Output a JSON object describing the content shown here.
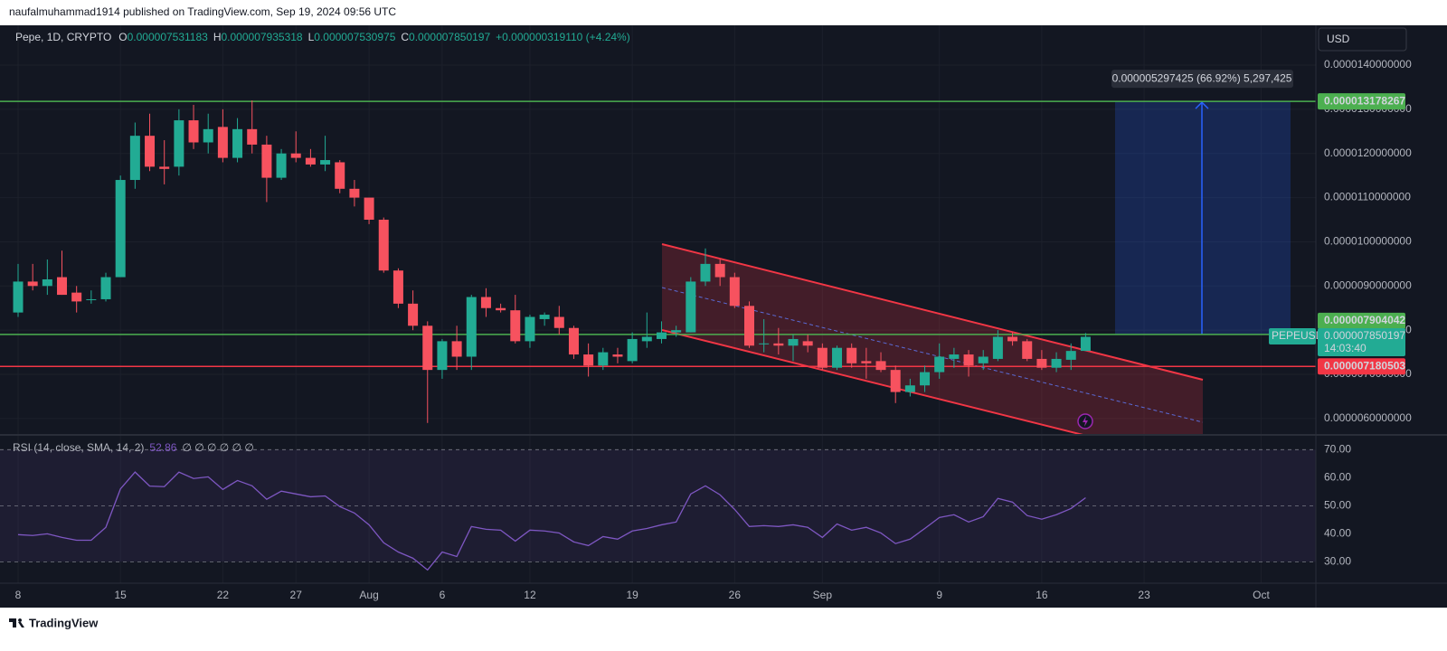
{
  "header": {
    "text": "naufalmuhammad1914 published on TradingView.com, Sep 19, 2024 09:56 UTC"
  },
  "footer": {
    "logo": "TradingView"
  },
  "chart_data": [
    {
      "type": "candlestick",
      "title": "Pepe, 1D, CRYPTO",
      "currency": "USD",
      "ohlc_labels": [
        "O",
        "H",
        "L",
        "C"
      ],
      "change": "+0.000000319110 (+4.24%)",
      "symbol_label": "PEPEUSD",
      "countdown": "14:03:40",
      "measure_label": "0.000005297425 (66.92%) 5,297,425",
      "up_color": "#22ab94",
      "down_color": "#f7525f",
      "grid": true,
      "categories": [
        "8",
        null,
        null,
        null,
        null,
        null,
        null,
        "15",
        null,
        null,
        null,
        null,
        null,
        null,
        "22",
        null,
        null,
        null,
        null,
        "27",
        null,
        null,
        null,
        null,
        "Aug",
        null,
        null,
        null,
        null,
        "6",
        null,
        null,
        null,
        null,
        null,
        "12",
        null,
        null,
        null,
        null,
        null,
        null,
        "19",
        null,
        null,
        null,
        null,
        null,
        null,
        "26",
        null,
        null,
        null,
        null,
        null,
        "Sep",
        null,
        null,
        null,
        null,
        null,
        null,
        null,
        "9",
        null,
        null,
        null,
        null,
        null,
        null,
        "16",
        null,
        null,
        null,
        null,
        null,
        null,
        "23",
        null,
        null,
        null,
        null,
        null,
        null,
        null,
        "Oct",
        null,
        null,
        null
      ],
      "open": [
        8.4e-06,
        9.1e-06,
        9e-06,
        9.2e-06,
        8.85e-06,
        8.7e-06,
        8.7e-06,
        9.2e-06,
        1.14e-05,
        1.24e-05,
        1.17e-05,
        1.17e-05,
        1.275e-05,
        1.225e-05,
        1.26e-05,
        1.19e-05,
        1.255e-05,
        1.22e-05,
        1.145e-05,
        1.2e-05,
        1.19e-05,
        1.175e-05,
        1.18e-05,
        1.12e-05,
        1.1e-05,
        1.05e-05,
        9.35e-06,
        8.6e-06,
        8.1e-06,
        7.1e-06,
        7.75e-06,
        7.4e-06,
        8.75e-06,
        8.5e-06,
        8.45e-06,
        7.75e-06,
        8.25e-06,
        8.3e-06,
        8.05e-06,
        7.45e-06,
        7.2e-06,
        7.45e-06,
        7.3e-06,
        7.75e-06,
        7.8e-06,
        7.95e-06,
        7.95e-06,
        9.1e-06,
        9.5e-06,
        9.2e-06,
        8.55e-06,
        7.7e-06,
        7.7e-06,
        7.65e-06,
        7.75e-06,
        7.6e-06,
        7.15e-06,
        7.6e-06,
        7.3e-06,
        7.3e-06,
        7.1e-06,
        6.6e-06,
        6.75e-06,
        7.05e-06,
        7.35e-06,
        7.45e-06,
        7.25e-06,
        7.35e-06,
        7.85e-06,
        7.75e-06,
        7.35e-06,
        7.15e-06,
        7.33e-06,
        7.531183e-06,
        null,
        null,
        null,
        null,
        null,
        null,
        null,
        null,
        null,
        null,
        null,
        null,
        null,
        null,
        null
      ],
      "high": [
        9.5e-06,
        9.5e-06,
        9.6e-06,
        9.8e-06,
        9e-06,
        8.9e-06,
        9.3e-06,
        1.15e-05,
        1.27e-05,
        1.29e-05,
        1.23e-05,
        1.3e-05,
        1.31e-05,
        1.29e-05,
        1.3e-05,
        1.28e-05,
        1.32e-05,
        1.24e-05,
        1.21e-05,
        1.25e-05,
        1.21e-05,
        1.24e-05,
        1.185e-05,
        1.14e-05,
        1.1e-05,
        1.055e-05,
        9.4e-06,
        8.9e-06,
        8.2e-06,
        7.8e-06,
        8.1e-06,
        8.8e-06,
        8.95e-06,
        8.6e-06,
        8.8e-06,
        8.35e-06,
        8.4e-06,
        8.55e-06,
        8.1e-06,
        7.7e-06,
        7.6e-06,
        7.6e-06,
        7.95e-06,
        8.4e-06,
        8.2e-06,
        8.1e-06,
        9.2e-06,
        9.85e-06,
        9.6e-06,
        9.3e-06,
        8.65e-06,
        8.25e-06,
        8.05e-06,
        7.9e-06,
        7.9e-06,
        7.7e-06,
        7.65e-06,
        7.7e-06,
        7.6e-06,
        7.5e-06,
        7.2e-06,
        6.9e-06,
        7.2e-06,
        7.7e-06,
        7.6e-06,
        7.55e-06,
        7.55e-06,
        8e-06,
        7.95e-06,
        7.8e-06,
        7.55e-06,
        7.5e-06,
        7.7e-06,
        7.935318e-06,
        null,
        null,
        null,
        null,
        null,
        null,
        null,
        null,
        null,
        null,
        null,
        null,
        null,
        null,
        null
      ],
      "low": [
        8.3e-06,
        8.9e-06,
        8.8e-06,
        8.8e-06,
        8.4e-06,
        8.6e-06,
        8.65e-06,
        9.2e-06,
        1.12e-05,
        1.16e-05,
        1.13e-05,
        1.15e-05,
        1.21e-05,
        1.2e-05,
        1.18e-05,
        1.18e-05,
        1.2e-05,
        1.09e-05,
        1.14e-05,
        1.18e-05,
        1.17e-05,
        1.16e-05,
        1.11e-05,
        1.08e-05,
        1.04e-05,
        9.3e-06,
        8.5e-06,
        8e-06,
        5.9e-06,
        6.9e-06,
        7.1e-06,
        7.1e-06,
        8.3e-06,
        8.4e-06,
        7.7e-06,
        7.6e-06,
        8.1e-06,
        7.9e-06,
        7.35e-06,
        6.95e-06,
        7.1e-06,
        7.25e-06,
        7.25e-06,
        7.6e-06,
        7.7e-06,
        7.85e-06,
        7.95e-06,
        9e-06,
        9e-06,
        8.5e-06,
        7.6e-06,
        7.5e-06,
        7.45e-06,
        7.3e-06,
        7.5e-06,
        7.1e-06,
        7.1e-06,
        7.15e-06,
        6.9e-06,
        7.05e-06,
        6.35e-06,
        6.5e-06,
        6.6e-06,
        6.9e-06,
        7.15e-06,
        6.95e-06,
        7.1e-06,
        7.3e-06,
        7.65e-06,
        7.3e-06,
        7.1e-06,
        7.05e-06,
        7.1e-06,
        7.530975e-06,
        null,
        null,
        null,
        null,
        null,
        null,
        null,
        null,
        null,
        null,
        null,
        null,
        null,
        null,
        null
      ],
      "close": [
        9.1e-06,
        9e-06,
        9.15e-06,
        8.8e-06,
        8.65e-06,
        8.7e-06,
        9.2e-06,
        1.14e-05,
        1.24e-05,
        1.17e-05,
        1.165e-05,
        1.275e-05,
        1.225e-05,
        1.255e-05,
        1.19e-05,
        1.255e-05,
        1.22e-05,
        1.145e-05,
        1.2e-05,
        1.19e-05,
        1.175e-05,
        1.185e-05,
        1.12e-05,
        1.1e-05,
        1.05e-05,
        9.35e-06,
        8.6e-06,
        8.1e-06,
        7.1e-06,
        7.75e-06,
        7.4e-06,
        8.75e-06,
        8.5e-06,
        8.45e-06,
        7.75e-06,
        8.3e-06,
        8.35e-06,
        8.05e-06,
        7.45e-06,
        7.2e-06,
        7.5e-06,
        7.4e-06,
        7.8e-06,
        7.85e-06,
        7.95e-06,
        8e-06,
        9.1e-06,
        9.5e-06,
        9.2e-06,
        8.55e-06,
        7.65e-06,
        7.7e-06,
        7.65e-06,
        7.8e-06,
        7.65e-06,
        7.15e-06,
        7.6e-06,
        7.25e-06,
        7.25e-06,
        7.1e-06,
        6.6e-06,
        6.75e-06,
        7.05e-06,
        7.4e-06,
        7.45e-06,
        7.2e-06,
        7.4e-06,
        7.85e-06,
        7.75e-06,
        7.35e-06,
        7.15e-06,
        7.35e-06,
        7.53e-06,
        7.850197e-06,
        null,
        null,
        null,
        null,
        null,
        null,
        null,
        null,
        null,
        null,
        null,
        null,
        null,
        null,
        null
      ],
      "ylim": [
        5.65e-06,
        1.49e-05
      ],
      "yticks": [
        {
          "value": 1.4e-05,
          "label": "0.0000140000000"
        },
        {
          "value": 1.3e-05,
          "label": "0.0000130000000"
        },
        {
          "value": 1.2e-05,
          "label": "0.0000120000000"
        },
        {
          "value": 1.1e-05,
          "label": "0.0000110000000"
        },
        {
          "value": 1e-05,
          "label": "0.0000100000000"
        },
        {
          "value": 9e-06,
          "label": "0.0000090000000"
        },
        {
          "value": 8e-06,
          "label": "0.0000080000000"
        },
        {
          "value": 7e-06,
          "label": "0.0000070000000"
        },
        {
          "value": 6e-06,
          "label": "0.0000060000000"
        }
      ],
      "hlines": [
        {
          "value": 1.3178267e-05,
          "color": "#4caf50"
        },
        {
          "value": 7.904042e-06,
          "color": "#4caf50"
        },
        {
          "value": 7.180503e-06,
          "color": "#f23645"
        }
      ]
    },
    {
      "type": "line",
      "title": "RSI (14, close, SMA, 14, 2)",
      "na_labels": "∅ ∅ ∅ ∅ ∅ ∅",
      "color": "#7e57c2",
      "values": [
        39.7,
        39.4,
        40,
        38.7,
        37.7,
        37.7,
        42.3,
        56,
        62,
        57,
        56.8,
        62,
        59.7,
        60.3,
        55.8,
        59,
        57.1,
        52.3,
        55.2,
        54.2,
        53.2,
        53.5,
        49.7,
        47.4,
        43.2,
        36.8,
        33.5,
        31.3,
        27.1,
        33.5,
        31.9,
        42.6,
        41.6,
        41.3,
        37.4,
        41.3,
        41,
        40.3,
        37.1,
        35.8,
        39,
        38.1,
        41,
        41.9,
        43.2,
        44.2,
        54.2,
        57.1,
        53.9,
        48.7,
        42.6,
        42.9,
        42.6,
        43.2,
        42.3,
        38.7,
        43.5,
        41.3,
        42.3,
        40.3,
        36.5,
        38.1,
        41.9,
        45.8,
        46.8,
        44.2,
        46.1,
        52.6,
        51.3,
        46.5,
        45.2,
        46.8,
        49,
        52.86,
        null,
        null,
        null,
        null,
        null,
        null,
        null,
        null,
        null,
        null,
        null,
        null,
        null,
        null,
        null
      ],
      "ylim": [
        24,
        73
      ],
      "yticks": [
        {
          "value": 70,
          "label": "70.00"
        },
        {
          "value": 60,
          "label": "60.00"
        },
        {
          "value": 50,
          "label": "50.00"
        },
        {
          "value": 40,
          "label": "40.00"
        },
        {
          "value": 30,
          "label": "30.00"
        }
      ]
    }
  ]
}
